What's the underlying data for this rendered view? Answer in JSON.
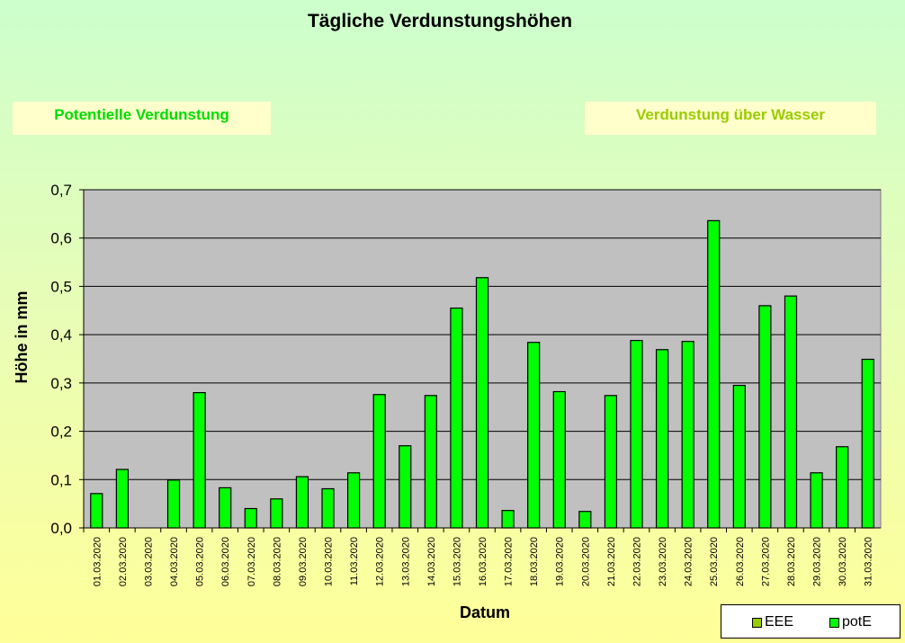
{
  "title": "Tägliche Verdunstungshöhen",
  "boxes": {
    "left": "Potentielle Verdunstung",
    "right": "Verdunstung über Wasser"
  },
  "legend": [
    {
      "name": "EEE",
      "color": "#99cc00"
    },
    {
      "name": "potE",
      "color": "#00ff00"
    }
  ],
  "colors": {
    "plot_background": "#c0c0c0",
    "bar_fill": "#00ff00",
    "bar_stroke": "#000000",
    "grid": "#000000"
  },
  "chart_data": {
    "type": "bar",
    "xlabel": "Datum",
    "ylabel": "Höhe in mm",
    "ylim": [
      0,
      0.7
    ],
    "yticks": [
      0.0,
      0.1,
      0.2,
      0.3,
      0.4,
      0.5,
      0.6,
      0.7
    ],
    "ytick_labels": [
      "0,0",
      "0,1",
      "0,2",
      "0,3",
      "0,4",
      "0,5",
      "0,6",
      "0,7"
    ],
    "grid": true,
    "legend_position": "bottom-right",
    "categories": [
      "01.03.2020",
      "02.03.2020",
      "03.03.2020",
      "04.03.2020",
      "05.03.2020",
      "06.03.2020",
      "07.03.2020",
      "08.03.2020",
      "09.03.2020",
      "10.03.2020",
      "11.03.2020",
      "12.03.2020",
      "13.03.2020",
      "14.03.2020",
      "15.03.2020",
      "16.03.2020",
      "17.03.2020",
      "18.03.2020",
      "19.03.2020",
      "20.03.2020",
      "21.03.2020",
      "22.03.2020",
      "23.03.2020",
      "24.03.2020",
      "25.03.2020",
      "26.03.2020",
      "27.03.2020",
      "28.03.2020",
      "29.03.2020",
      "30.03.2020",
      "31.03.2020"
    ],
    "series": [
      {
        "name": "EEE",
        "values": [
          null,
          null,
          null,
          null,
          null,
          null,
          null,
          null,
          null,
          null,
          null,
          null,
          null,
          null,
          null,
          null,
          null,
          null,
          null,
          null,
          null,
          null,
          null,
          null,
          null,
          null,
          null,
          null,
          null,
          null,
          null
        ]
      },
      {
        "name": "potE",
        "values": [
          0.071,
          0.121,
          null,
          0.099,
          0.28,
          0.083,
          0.04,
          0.06,
          0.106,
          0.081,
          0.114,
          0.276,
          0.17,
          0.274,
          0.455,
          0.518,
          0.036,
          0.384,
          0.282,
          0.034,
          0.274,
          0.388,
          0.369,
          0.386,
          0.636,
          0.295,
          0.46,
          0.48,
          0.114,
          0.168,
          0.349
        ]
      }
    ]
  }
}
